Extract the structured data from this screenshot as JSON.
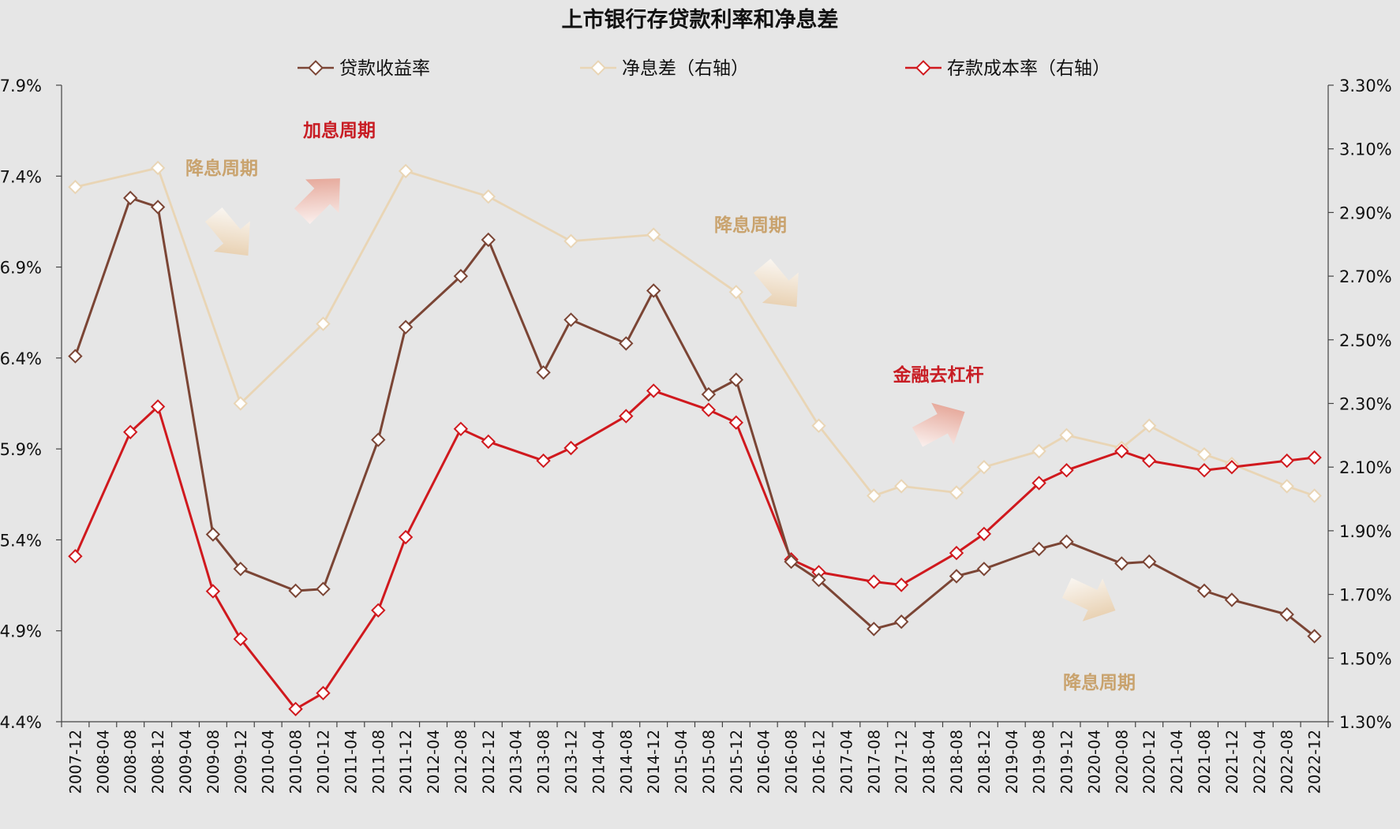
{
  "chart_data": {
    "type": "line",
    "title": "上市银行存贷款利率和净息差",
    "x": [
      "2007-12",
      "2008-04",
      "2008-08",
      "2008-12",
      "2009-04",
      "2009-08",
      "2009-12",
      "2010-04",
      "2010-08",
      "2010-12",
      "2011-04",
      "2011-08",
      "2011-12",
      "2012-04",
      "2012-08",
      "2012-12",
      "2013-04",
      "2013-08",
      "2013-12",
      "2014-04",
      "2014-08",
      "2014-12",
      "2015-04",
      "2015-08",
      "2015-12",
      "2016-04",
      "2016-08",
      "2016-12",
      "2017-04",
      "2017-08",
      "2017-12",
      "2018-04",
      "2018-08",
      "2018-12",
      "2019-04",
      "2019-08",
      "2019-12",
      "2020-04",
      "2020-08",
      "2020-12",
      "2021-04",
      "2021-08",
      "2021-12",
      "2022-04",
      "2022-08",
      "2022-12"
    ],
    "y_left": {
      "ticks": [
        "7.9%",
        "7.4%",
        "6.9%",
        "6.4%",
        "5.9%",
        "5.4%",
        "4.9%",
        "4.4%"
      ],
      "ylim": [
        4.4,
        7.9
      ]
    },
    "y_right": {
      "ticks": [
        "3.30%",
        "3.10%",
        "2.90%",
        "2.70%",
        "2.50%",
        "2.30%",
        "2.10%",
        "1.90%",
        "1.70%",
        "1.50%",
        "1.30%"
      ],
      "ylim": [
        1.3,
        3.3
      ]
    },
    "series": [
      {
        "name": "贷款收益率",
        "axis": "left",
        "color": "#7b4535",
        "points": [
          [
            "2007-12",
            6.41
          ],
          [
            "2008-08",
            7.28
          ],
          [
            "2008-12",
            7.23
          ],
          [
            "2009-08",
            5.43
          ],
          [
            "2009-12",
            5.24
          ],
          [
            "2010-08",
            5.12
          ],
          [
            "2010-12",
            5.13
          ],
          [
            "2011-08",
            5.95
          ],
          [
            "2011-12",
            6.57
          ],
          [
            "2012-08",
            6.85
          ],
          [
            "2012-12",
            7.05
          ],
          [
            "2013-08",
            6.32
          ],
          [
            "2013-12",
            6.61
          ],
          [
            "2014-08",
            6.48
          ],
          [
            "2014-12",
            6.77
          ],
          [
            "2015-08",
            6.2
          ],
          [
            "2015-12",
            6.28
          ],
          [
            "2016-08",
            5.28
          ],
          [
            "2016-12",
            5.18
          ],
          [
            "2017-08",
            4.91
          ],
          [
            "2017-12",
            4.95
          ],
          [
            "2018-08",
            5.2
          ],
          [
            "2018-12",
            5.24
          ],
          [
            "2019-08",
            5.35
          ],
          [
            "2019-12",
            5.39
          ],
          [
            "2020-08",
            5.27
          ],
          [
            "2020-12",
            5.28
          ],
          [
            "2021-08",
            5.12
          ],
          [
            "2021-12",
            5.07
          ],
          [
            "2022-08",
            4.99
          ],
          [
            "2022-12",
            4.87
          ]
        ]
      },
      {
        "name": "净息差（右轴）",
        "axis": "right",
        "color": "#e9d5b5",
        "points": [
          [
            "2007-12",
            2.98
          ],
          [
            "2008-12",
            3.04
          ],
          [
            "2009-12",
            2.3
          ],
          [
            "2010-12",
            2.55
          ],
          [
            "2011-12",
            3.03
          ],
          [
            "2012-12",
            2.95
          ],
          [
            "2013-12",
            2.81
          ],
          [
            "2014-12",
            2.83
          ],
          [
            "2015-12",
            2.65
          ],
          [
            "2016-12",
            2.23
          ],
          [
            "2017-08",
            2.01
          ],
          [
            "2017-12",
            2.04
          ],
          [
            "2018-08",
            2.02
          ],
          [
            "2018-12",
            2.1
          ],
          [
            "2019-08",
            2.15
          ],
          [
            "2019-12",
            2.2
          ],
          [
            "2020-08",
            2.16
          ],
          [
            "2020-12",
            2.23
          ],
          [
            "2021-08",
            2.14
          ],
          [
            "2021-12",
            2.11
          ],
          [
            "2022-08",
            2.04
          ],
          [
            "2022-12",
            2.01
          ]
        ]
      },
      {
        "name": "存款成本率（右轴）",
        "axis": "right",
        "color": "#d0191e",
        "points": [
          [
            "2007-12",
            1.82
          ],
          [
            "2008-08",
            2.21
          ],
          [
            "2008-12",
            2.29
          ],
          [
            "2009-08",
            1.71
          ],
          [
            "2009-12",
            1.56
          ],
          [
            "2010-08",
            1.34
          ],
          [
            "2010-12",
            1.39
          ],
          [
            "2011-08",
            1.65
          ],
          [
            "2011-12",
            1.88
          ],
          [
            "2012-08",
            2.22
          ],
          [
            "2012-12",
            2.18
          ],
          [
            "2013-08",
            2.12
          ],
          [
            "2013-12",
            2.16
          ],
          [
            "2014-08",
            2.26
          ],
          [
            "2014-12",
            2.34
          ],
          [
            "2015-08",
            2.28
          ],
          [
            "2015-12",
            2.24
          ],
          [
            "2016-08",
            1.81
          ],
          [
            "2016-12",
            1.77
          ],
          [
            "2017-08",
            1.74
          ],
          [
            "2017-12",
            1.73
          ],
          [
            "2018-08",
            1.83
          ],
          [
            "2018-12",
            1.89
          ],
          [
            "2019-08",
            2.05
          ],
          [
            "2019-12",
            2.09
          ],
          [
            "2020-08",
            2.15
          ],
          [
            "2020-12",
            2.12
          ],
          [
            "2021-08",
            2.09
          ],
          [
            "2021-12",
            2.1
          ],
          [
            "2022-08",
            2.12
          ],
          [
            "2022-12",
            2.13
          ]
        ]
      }
    ],
    "legend_position": "top",
    "grid": false,
    "annotations": [
      {
        "text": "降息周期",
        "color": "#c9a36e"
      },
      {
        "text": "加息周期",
        "color": "#c81d24"
      },
      {
        "text": "降息周期",
        "color": "#c9a36e"
      },
      {
        "text": "金融去杠杆",
        "color": "#c81d24"
      },
      {
        "text": "降息周期",
        "color": "#c9a36e"
      }
    ]
  }
}
